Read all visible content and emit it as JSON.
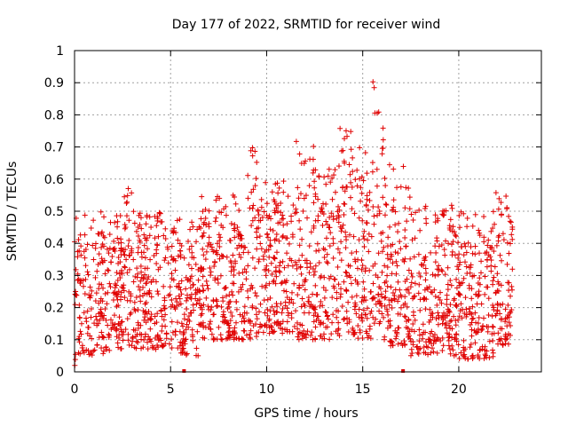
{
  "chart_data": {
    "type": "scatter",
    "title": "Day 177 of 2022, SRMTID for receiver wind",
    "xlabel": "GPS time / hours",
    "ylabel": "SRMTID / TECUs",
    "xlim": [
      0,
      24.3
    ],
    "ylim": [
      0,
      1
    ],
    "xticks": [
      0,
      5,
      10,
      15,
      20
    ],
    "yticks": [
      0,
      0.1,
      0.2,
      0.3,
      0.4,
      0.5,
      0.6,
      0.7,
      0.8,
      0.9,
      1
    ],
    "ytick_labels": [
      "0",
      "0.1",
      "0.2",
      "0.3",
      "0.4",
      "0.5",
      "0.6",
      "0.7",
      "0.8",
      "0.9",
      "1"
    ],
    "xtick_labels": [
      "0",
      "5",
      "10",
      "15",
      "20"
    ],
    "grid": true,
    "marker": "+",
    "color": "#e00000",
    "x_range_of_data": [
      0,
      22.8
    ],
    "clusters": [
      {
        "x": [
          0.0,
          0.3
        ],
        "y": [
          0.02,
          0.5
        ]
      },
      {
        "x": [
          0.3,
          2.5
        ],
        "y": [
          0.05,
          0.5
        ]
      },
      {
        "x": [
          2.5,
          3.0
        ],
        "y": [
          0.08,
          0.6
        ]
      },
      {
        "x": [
          3.0,
          5.5
        ],
        "y": [
          0.07,
          0.5
        ]
      },
      {
        "x": [
          5.5,
          6.5
        ],
        "y": [
          0.05,
          0.47
        ]
      },
      {
        "x": [
          6.5,
          9.0
        ],
        "y": [
          0.1,
          0.55
        ]
      },
      {
        "x": [
          9.0,
          9.5
        ],
        "y": [
          0.1,
          0.71
        ]
      },
      {
        "x": [
          9.5,
          11.5
        ],
        "y": [
          0.12,
          0.6
        ]
      },
      {
        "x": [
          11.5,
          12.5
        ],
        "y": [
          0.1,
          0.72
        ]
      },
      {
        "x": [
          12.5,
          13.8
        ],
        "y": [
          0.1,
          0.65
        ]
      },
      {
        "x": [
          13.8,
          14.5
        ],
        "y": [
          0.12,
          0.78
        ]
      },
      {
        "x": [
          14.5,
          15.5
        ],
        "y": [
          0.1,
          0.7
        ]
      },
      {
        "x": [
          15.5,
          16.1
        ],
        "y": [
          0.15,
          0.91
        ]
      },
      {
        "x": [
          16.1,
          17.5
        ],
        "y": [
          0.08,
          0.65
        ]
      },
      {
        "x": [
          17.5,
          20.0
        ],
        "y": [
          0.05,
          0.52
        ]
      },
      {
        "x": [
          20.0,
          21.8
        ],
        "y": [
          0.04,
          0.5
        ]
      },
      {
        "x": [
          21.8,
          22.8
        ],
        "y": [
          0.08,
          0.56
        ]
      }
    ],
    "baseline_marks_x": [
      5.7,
      17.1
    ]
  }
}
